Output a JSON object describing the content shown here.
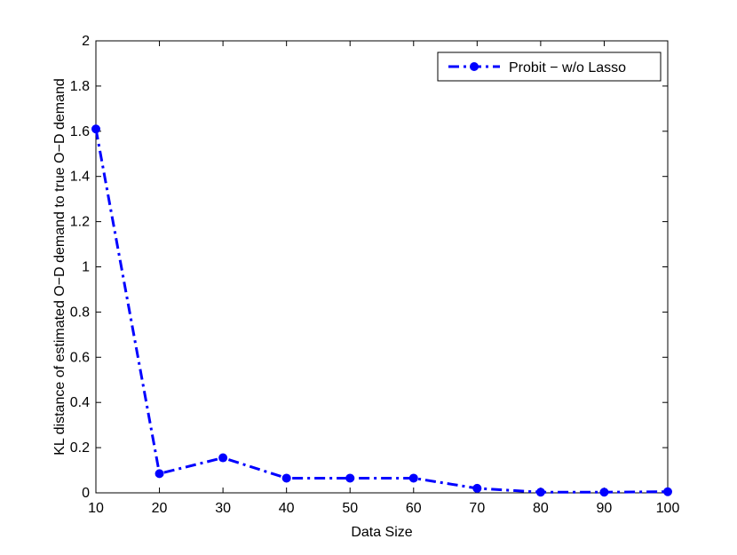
{
  "chart_data": {
    "type": "line",
    "title": "",
    "xlabel": "Data Size",
    "ylabel": "KL distance of estimated O−D demand to true O−D demand",
    "xlim": [
      10,
      100
    ],
    "ylim": [
      0,
      2
    ],
    "xticks": [
      10,
      20,
      30,
      40,
      50,
      60,
      70,
      80,
      90,
      100
    ],
    "yticks": [
      0,
      0.2,
      0.4,
      0.6,
      0.8,
      1,
      1.2,
      1.4,
      1.6,
      1.8,
      2
    ],
    "xtick_labels": [
      "10",
      "20",
      "30",
      "40",
      "50",
      "60",
      "70",
      "80",
      "90",
      "100"
    ],
    "ytick_labels": [
      "0",
      "0.2",
      "0.4",
      "0.6",
      "0.8",
      "1",
      "1.2",
      "1.4",
      "1.6",
      "1.8",
      "2"
    ],
    "grid": false,
    "legend_position": "top-right",
    "series": [
      {
        "name": "Probit − w/o Lasso",
        "color": "#0000ff",
        "line_style": "dash-dot",
        "marker": "circle",
        "x": [
          10,
          20,
          30,
          40,
          50,
          60,
          70,
          80,
          90,
          100
        ],
        "y": [
          1.61,
          0.085,
          0.155,
          0.065,
          0.065,
          0.065,
          0.02,
          0.003,
          0.003,
          0.005
        ]
      }
    ]
  }
}
